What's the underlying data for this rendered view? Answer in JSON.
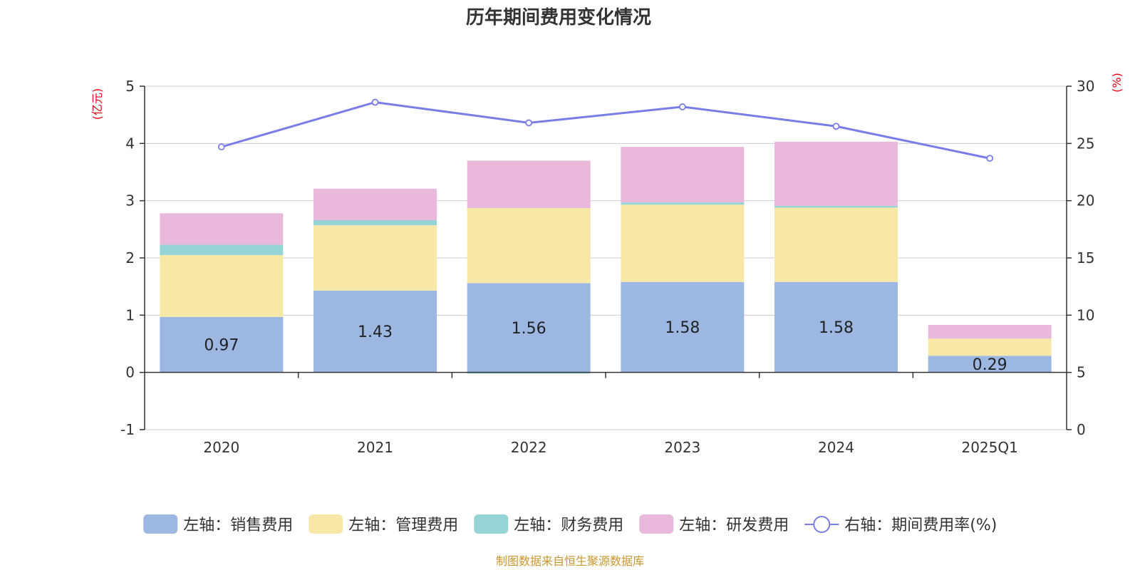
{
  "chart_data": {
    "type": "bar",
    "title": "历年期间费用变化情况",
    "categories": [
      "2020",
      "2021",
      "2022",
      "2023",
      "2024",
      "2025Q1"
    ],
    "left_axis": {
      "unit": "(亿元)",
      "min": -1,
      "max": 5,
      "ticks": [
        "5",
        "4",
        "3",
        "2",
        "1",
        "0",
        "-1"
      ]
    },
    "right_axis": {
      "unit": "(%)",
      "min": 0,
      "max": 30,
      "ticks": [
        "30",
        "25",
        "20",
        "15",
        "10",
        "5",
        "0"
      ]
    },
    "series": [
      {
        "name": "左轴：销售费用",
        "kind": "bar",
        "color": "#9bb7e2",
        "values": [
          0.97,
          1.43,
          1.56,
          1.58,
          1.58,
          0.29
        ],
        "labels": [
          "0.97",
          "1.43",
          "1.56",
          "1.58",
          "1.58",
          "0.29"
        ]
      },
      {
        "name": "左轴：管理费用",
        "kind": "bar",
        "color": "#f8e8a8",
        "values": [
          1.08,
          1.14,
          1.31,
          1.35,
          1.3,
          0.3
        ]
      },
      {
        "name": "左轴：财务费用",
        "kind": "bar",
        "color": "#95d3d5",
        "values": [
          0.18,
          0.09,
          -0.02,
          0.04,
          0.03,
          0.0
        ]
      },
      {
        "name": "左轴：研发费用",
        "kind": "bar",
        "color": "#e8b9da",
        "values": [
          0.55,
          0.55,
          0.83,
          0.97,
          1.12,
          0.24
        ]
      },
      {
        "name": "右轴：期间费用率(%)",
        "kind": "line",
        "color": "#7a7de8",
        "values": [
          24.7,
          28.6,
          26.8,
          28.2,
          26.5,
          23.7
        ]
      }
    ],
    "grid": true,
    "legend_position": "bottom",
    "source": "制图数据来自恒生聚源数据库"
  }
}
